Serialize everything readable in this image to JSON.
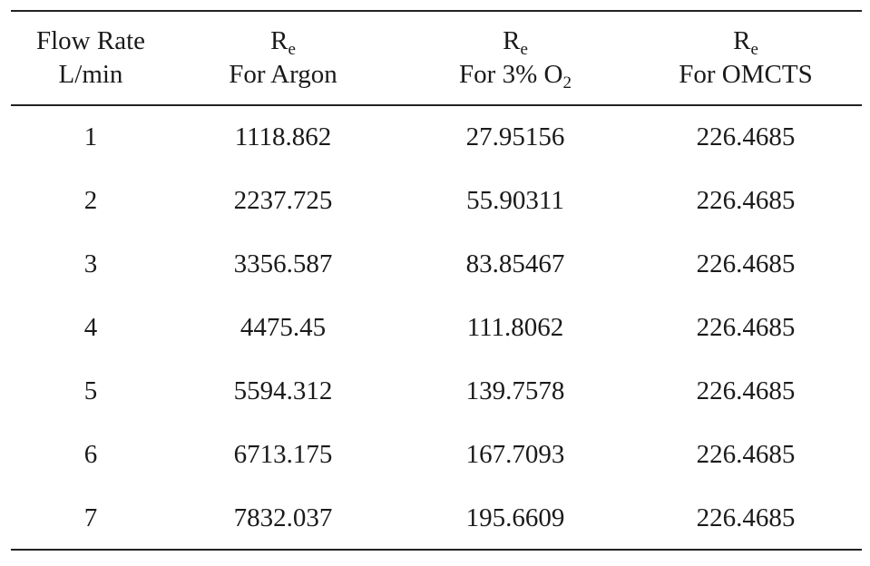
{
  "table": {
    "headers": [
      {
        "line1": "Flow Rate",
        "line2": "L/min"
      },
      {
        "symbol": "R",
        "symbol_sub": "e",
        "label": "For Argon"
      },
      {
        "symbol": "R",
        "symbol_sub": "e",
        "label": "For 3% O",
        "label_sub": "2"
      },
      {
        "symbol": "R",
        "symbol_sub": "e",
        "label": "For OMCTS"
      }
    ],
    "rows": [
      [
        "1",
        "1118.862",
        "27.95156",
        "226.4685"
      ],
      [
        "2",
        "2237.725",
        "55.90311",
        "226.4685"
      ],
      [
        "3",
        "3356.587",
        "83.85467",
        "226.4685"
      ],
      [
        "4",
        "4475.45",
        "111.8062",
        "226.4685"
      ],
      [
        "5",
        "5594.312",
        "139.7578",
        "226.4685"
      ],
      [
        "6",
        "6713.175",
        "167.7093",
        "226.4685"
      ],
      [
        "7",
        "7832.037",
        "195.6609",
        "226.4685"
      ]
    ]
  }
}
